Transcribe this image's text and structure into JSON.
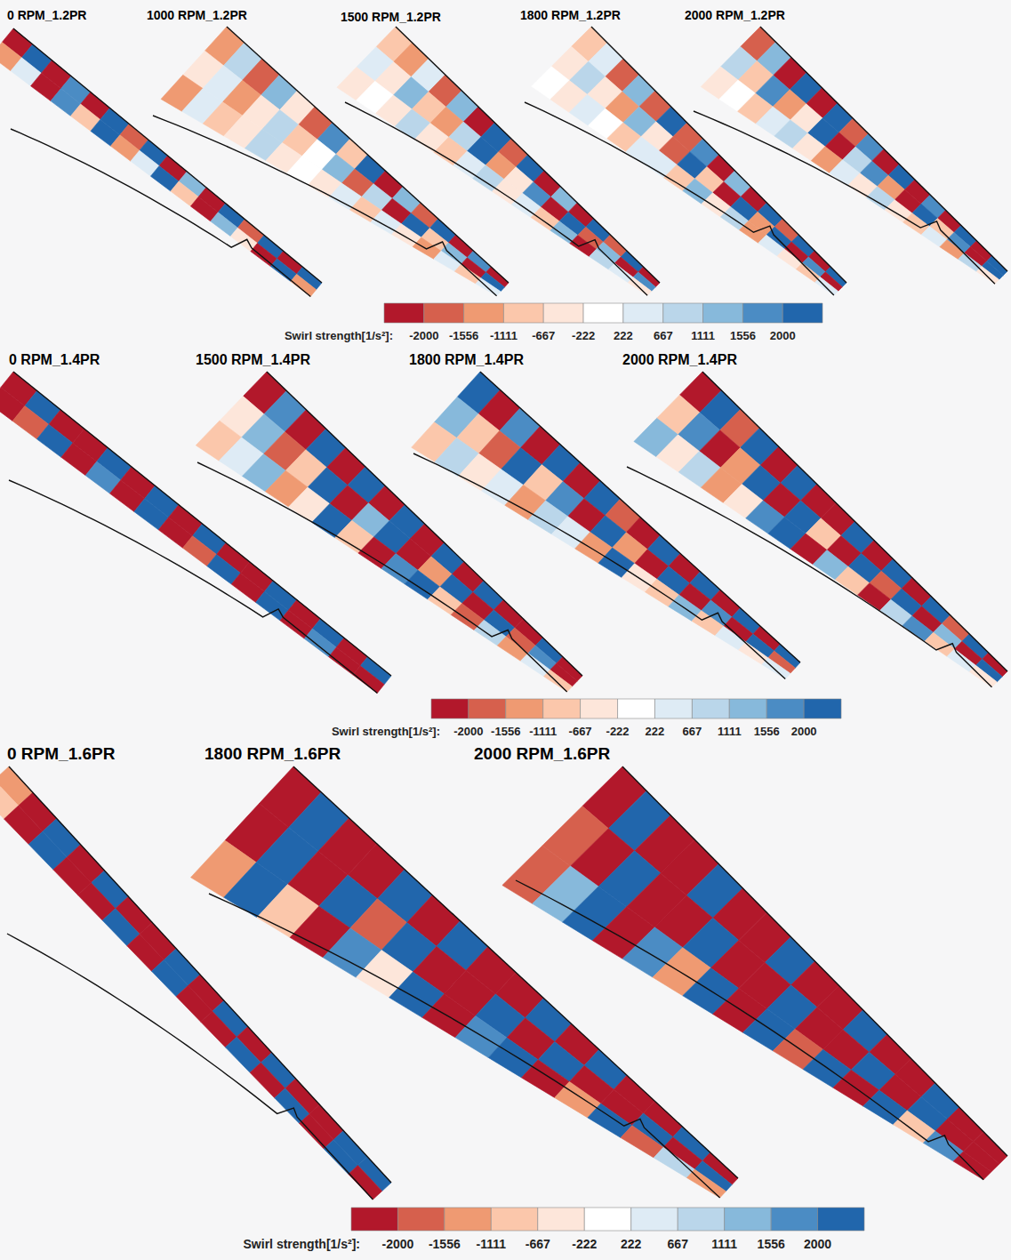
{
  "chart_data": [
    {
      "type": "heatmap",
      "title": "0 RPM_1.2PR",
      "values": [
        [
          -2400,
          2400,
          -2400,
          1600,
          -2400,
          2400,
          -1800,
          2400,
          -2400,
          1200,
          -2400,
          2400,
          -2000,
          2400,
          -2400,
          2400
        ],
        [
          -1200,
          600,
          -2400,
          1800,
          -700,
          2400,
          -1300,
          300,
          2000,
          -800,
          -2400,
          1500,
          -600,
          -2400,
          2400,
          -1500
        ]
      ]
    },
    {
      "type": "heatmap",
      "title": "1000 RPM_1.2PR",
      "values": [
        [
          -1500,
          700,
          -1800,
          1200,
          -400,
          -2000,
          1600,
          -900,
          2400,
          -2400,
          1300,
          -1700,
          2400,
          -2400,
          1800,
          -2400
        ],
        [
          -600,
          300,
          -1300,
          -300,
          900,
          -700,
          -200,
          1300,
          -1600,
          800,
          -2400,
          2000,
          -900,
          1500,
          -2400,
          2400
        ],
        [
          -1300,
          500,
          -800,
          -300,
          700,
          -300,
          200,
          -600,
          300,
          -900,
          600,
          -300,
          -1200,
          400,
          -700,
          300
        ]
      ]
    },
    {
      "type": "heatmap",
      "title": "1500 RPM_1.2PR",
      "values": [
        [
          -700,
          -1400,
          600,
          -2000,
          1400,
          -2400,
          2000,
          -1800,
          2400,
          -2400,
          1500,
          -2400,
          2400,
          -2000,
          2400,
          -2400
        ],
        [
          300,
          -500,
          1200,
          -800,
          -1500,
          900,
          2200,
          -1300,
          -600,
          1800,
          -2400,
          2400,
          -1700,
          1200,
          -2400,
          1900
        ],
        [
          -400,
          200,
          -300,
          700,
          -600,
          -1000,
          400,
          1100,
          -300,
          600,
          -900,
          1400,
          -2400,
          800,
          300,
          -600
        ]
      ]
    },
    {
      "type": "heatmap",
      "title": "1800 RPM_1.2PR",
      "values": [
        [
          -900,
          400,
          -1600,
          1200,
          -2000,
          2400,
          -1600,
          1800,
          -2400,
          1300,
          -2400,
          2400,
          -1900,
          2400,
          -2400,
          2000
        ],
        [
          -400,
          900,
          -300,
          -1200,
          1500,
          -600,
          -1900,
          2200,
          -900,
          -2400,
          2000,
          -1400,
          2400,
          -2400,
          1600,
          -2400
        ],
        [
          200,
          -500,
          300,
          -200,
          -700,
          500,
          300,
          -800,
          1200,
          -400,
          800,
          -1500,
          600,
          -300,
          -900,
          400
        ]
      ]
    },
    {
      "type": "heatmap",
      "title": "2000 RPM_1.2PR",
      "values": [
        [
          -1800,
          1400,
          -2400,
          2000,
          -2400,
          2400,
          -2000,
          1600,
          -2400,
          2400,
          -2400,
          1800,
          -2400,
          2400,
          -2400,
          2400
        ],
        [
          700,
          -900,
          1600,
          -1300,
          -600,
          2000,
          -2400,
          900,
          1800,
          -1500,
          -2400,
          2400,
          -1100,
          1700,
          -2400,
          2000
        ],
        [
          -300,
          200,
          -800,
          500,
          900,
          -400,
          -1200,
          300,
          -600,
          1000,
          -300,
          -800,
          500,
          -1400,
          900,
          -500
        ]
      ]
    },
    {
      "type": "heatmap",
      "title": "0 RPM_1.4PR",
      "values": [
        [
          -2400,
          2400,
          -2400,
          -2400,
          2400,
          -2400,
          2400,
          -2400,
          2400,
          -2400,
          -2400,
          2400,
          -2400,
          2400,
          -2400,
          2400
        ],
        [
          -2400,
          -1800,
          2400,
          -2400,
          1600,
          -2400,
          2400,
          -2400,
          -2000,
          2400,
          -2400,
          2400,
          -2400,
          1800,
          -2400,
          -2400
        ]
      ]
    },
    {
      "type": "heatmap",
      "title": "1500 RPM_1.4PR",
      "values": [
        [
          -2400,
          1800,
          -2400,
          2400,
          -2400,
          2400,
          -2400,
          2000,
          -2400,
          2400,
          -2400,
          2400,
          -2400,
          -2400,
          2400,
          -2400
        ],
        [
          -600,
          1500,
          -1800,
          -700,
          2400,
          -2400,
          1300,
          2400,
          -2400,
          -1400,
          2400,
          -2400,
          2400,
          -2000,
          1600,
          -2400
        ],
        [
          -1000,
          600,
          1400,
          -1300,
          -500,
          2200,
          -900,
          -2400,
          1800,
          2400,
          -700,
          -1900,
          800,
          -1200,
          500,
          -900
        ]
      ]
    },
    {
      "type": "heatmap",
      "title": "1800 RPM_1.4PR",
      "values": [
        [
          2000,
          -2400,
          1600,
          -2400,
          2400,
          -2400,
          2400,
          -2000,
          -2400,
          2400,
          -2400,
          2400,
          -2400,
          2400,
          -2400,
          2400
        ],
        [
          1400,
          -900,
          -2000,
          2200,
          -1100,
          1700,
          -2400,
          2400,
          -1500,
          -2400,
          2400,
          -2400,
          1900,
          -2400,
          2400,
          -1800
        ],
        [
          -800,
          1100,
          -400,
          600,
          -1500,
          900,
          300,
          -1200,
          2000,
          -600,
          -1000,
          1500,
          -700,
          400,
          -300,
          500
        ]
      ]
    },
    {
      "type": "heatmap",
      "title": "2000 RPM_1.4PR",
      "values": [
        [
          -2400,
          2400,
          -1800,
          2400,
          -2400,
          2400,
          -2400,
          -2400,
          2400,
          -2400,
          2400,
          -2400,
          2400,
          -2000,
          2400,
          -2400
        ],
        [
          -700,
          1800,
          -2400,
          -1200,
          2400,
          -2400,
          2400,
          -900,
          -2400,
          2400,
          -1800,
          2400,
          -2400,
          1400,
          -2400,
          2400
        ],
        [
          1200,
          -600,
          900,
          -1500,
          -400,
          1600,
          2400,
          -2400,
          1300,
          -700,
          -2400,
          900,
          1700,
          -1100,
          500,
          -600
        ]
      ]
    },
    {
      "type": "heatmap",
      "title": "0 RPM_1.6PR",
      "values": [
        [
          -1500,
          -2400,
          2400,
          -2400,
          2400,
          -2400,
          -2400,
          2400,
          -2400,
          2400,
          -2400,
          2400,
          -2400,
          -2400,
          2400,
          2400
        ],
        [
          -800,
          -2400,
          2400,
          -2400,
          -2400,
          2400,
          -2400,
          2400,
          -2400,
          -2400,
          2400,
          -2400,
          2400,
          -2400,
          2400,
          -2400
        ]
      ]
    },
    {
      "type": "heatmap",
      "title": "1800 RPM_1.6PR",
      "values": [
        [
          -2400,
          2400,
          -2400,
          -2400,
          2400,
          -2400,
          2400,
          -2400,
          -2400,
          2400,
          -2400,
          2400,
          -2400,
          -2400,
          2400,
          -2400
        ],
        [
          -2400,
          2000,
          -2400,
          2400,
          -1800,
          2400,
          -2400,
          -2400,
          2400,
          -2400,
          2400,
          -2400,
          -2400,
          2400,
          -2400,
          2400
        ],
        [
          -1400,
          2400,
          -900,
          -2400,
          1600,
          -600,
          2400,
          -2400,
          1800,
          2400,
          -2400,
          -1300,
          2400,
          -1800,
          900,
          -1200
        ]
      ]
    },
    {
      "type": "heatmap",
      "title": "2000 RPM_1.6PR",
      "values": [
        [
          -2400,
          2400,
          -2400,
          -2400,
          2400,
          -2400,
          -2400,
          2400,
          -2400,
          -2400,
          2400,
          -2400,
          -2400,
          2400,
          -2400,
          -2400
        ],
        [
          -2000,
          -2400,
          2400,
          -2400,
          -2400,
          2400,
          -2400,
          -2400,
          2400,
          -2400,
          -2400,
          2400,
          -2400,
          2400,
          -2400,
          -2400
        ],
        [
          -1600,
          1200,
          2400,
          -2400,
          1800,
          -1400,
          2400,
          -2400,
          2400,
          -1700,
          2400,
          -2400,
          2400,
          -800,
          1900,
          -2400
        ]
      ]
    }
  ],
  "colorbars": [
    {
      "label": "Swirl strength[1/s²]:",
      "range": [
        -2444,
        2444
      ],
      "ticks": [
        -2000,
        -1556,
        -1111,
        -667,
        -222,
        222,
        667,
        1111,
        1556,
        2000
      ],
      "colors": [
        "#b2182b",
        "#d6604d",
        "#ef9a72",
        "#fbc7ab",
        "#fde6da",
        "#ffffff",
        "#deebf5",
        "#bad6ea",
        "#87b9db",
        "#4b8cc4",
        "#2166ac"
      ]
    },
    {
      "label": "Swirl strength[1/s²]:",
      "range": [
        -2444,
        2444
      ],
      "ticks": [
        -2000,
        -1556,
        -1111,
        -667,
        -222,
        222,
        667,
        1111,
        1556,
        2000
      ],
      "colors": [
        "#b2182b",
        "#d6604d",
        "#ef9a72",
        "#fbc7ab",
        "#fde6da",
        "#ffffff",
        "#deebf5",
        "#bad6ea",
        "#87b9db",
        "#4b8cc4",
        "#2166ac"
      ]
    },
    {
      "label": "Swirl strength[1/s²]:",
      "range": [
        -2444,
        2444
      ],
      "ticks": [
        -2000,
        -1556,
        -1111,
        -667,
        -222,
        222,
        667,
        1111,
        1556,
        2000
      ],
      "colors": [
        "#b2182b",
        "#d6604d",
        "#ef9a72",
        "#fbc7ab",
        "#fde6da",
        "#ffffff",
        "#deebf5",
        "#bad6ea",
        "#87b9db",
        "#4b8cc4",
        "#2166ac"
      ]
    }
  ]
}
